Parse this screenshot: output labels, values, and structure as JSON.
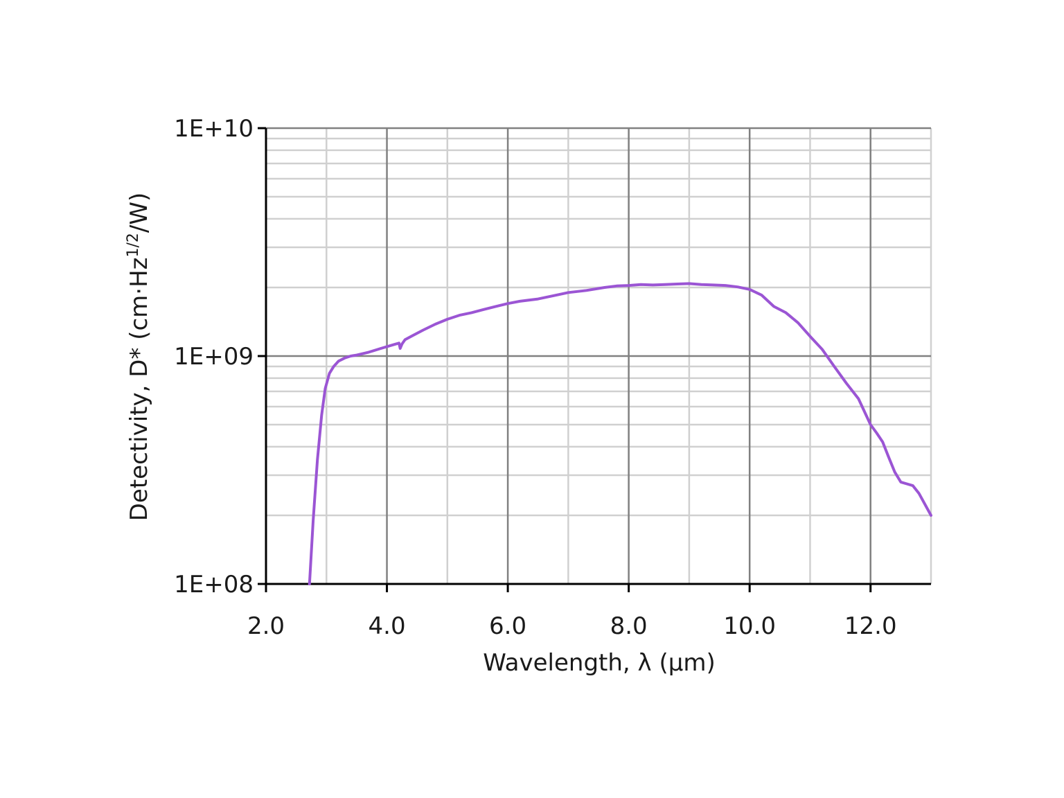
{
  "chart_data": {
    "type": "line",
    "title": "",
    "xlabel": "Wavelength, λ (μm)",
    "ylabel_parts": {
      "prefix": "Detectivity, D* (cm·Hz",
      "superscript": "1/2",
      "suffix": "/W)"
    },
    "xlim": [
      2.0,
      13.0
    ],
    "ylim": [
      100000000,
      10000000000
    ],
    "y_scale": "log",
    "grid": true,
    "x_major_ticks": [
      2.0,
      4.0,
      6.0,
      8.0,
      10.0,
      12.0
    ],
    "x_tick_labels": [
      "2.0",
      "4.0",
      "6.0",
      "8.0",
      "10.0",
      "12.0"
    ],
    "x_minor_ticks": [
      3.0,
      5.0,
      7.0,
      9.0,
      11.0,
      13.0
    ],
    "y_major_ticks": [
      100000000,
      1000000000,
      10000000000
    ],
    "y_tick_labels": [
      "1E+08",
      "1E+09",
      "1E+10"
    ],
    "colors": {
      "series": "#9b55d4",
      "major_grid": "#808080",
      "minor_grid": "#d0d0d0",
      "axis": "#000000"
    },
    "series": [
      {
        "x": [
          2.72,
          2.78,
          2.85,
          2.92,
          2.98,
          3.05,
          3.12,
          3.2,
          3.3,
          3.4,
          3.5,
          3.7,
          3.9,
          4.1,
          4.2,
          4.22,
          4.25,
          4.3,
          4.4,
          4.6,
          4.8,
          5.0,
          5.2,
          5.4,
          5.6,
          5.8,
          6.0,
          6.2,
          6.5,
          6.8,
          7.0,
          7.3,
          7.6,
          7.8,
          8.0,
          8.2,
          8.4,
          8.6,
          8.8,
          9.0,
          9.2,
          9.4,
          9.6,
          9.8,
          10.0,
          10.2,
          10.4,
          10.6,
          10.8,
          11.0,
          11.2,
          11.4,
          11.6,
          11.8,
          12.0,
          12.1,
          12.2,
          12.3,
          12.4,
          12.5,
          12.6,
          12.7,
          12.8,
          13.0
        ],
        "y": [
          100000000,
          190000000,
          350000000,
          550000000,
          720000000,
          840000000,
          900000000,
          950000000,
          980000000,
          1000000000,
          1010000000,
          1040000000,
          1080000000,
          1120000000,
          1140000000,
          1080000000,
          1130000000,
          1180000000,
          1220000000,
          1300000000,
          1380000000,
          1450000000,
          1510000000,
          1550000000,
          1600000000,
          1650000000,
          1700000000,
          1740000000,
          1780000000,
          1850000000,
          1900000000,
          1940000000,
          2000000000,
          2030000000,
          2040000000,
          2060000000,
          2050000000,
          2060000000,
          2070000000,
          2080000000,
          2060000000,
          2050000000,
          2040000000,
          2010000000,
          1960000000,
          1850000000,
          1650000000,
          1550000000,
          1400000000,
          1220000000,
          1070000000,
          900000000,
          760000000,
          650000000,
          500000000,
          460000000,
          420000000,
          360000000,
          310000000,
          280000000,
          275000000,
          270000000,
          250000000,
          200000000
        ]
      }
    ]
  }
}
